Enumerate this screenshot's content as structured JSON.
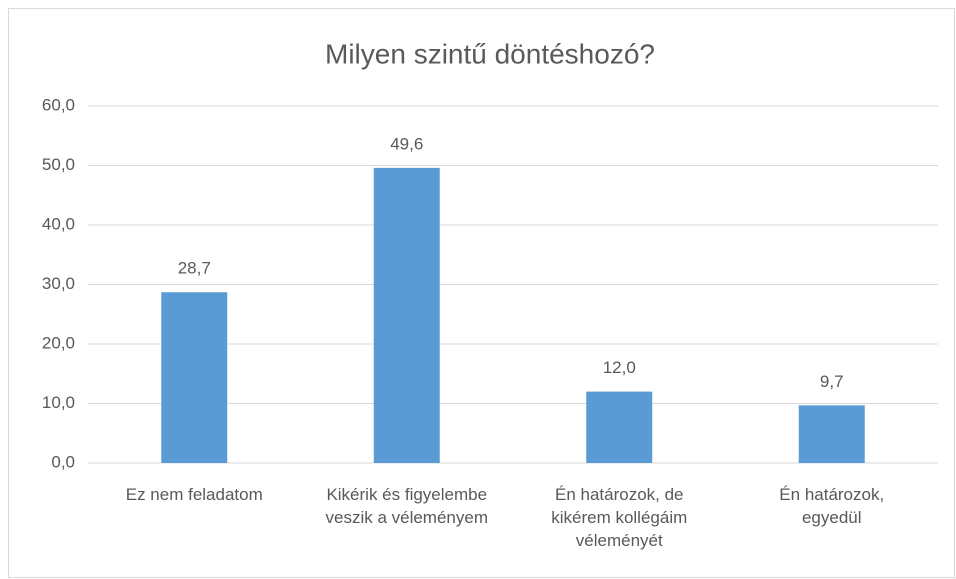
{
  "chart_data": {
    "type": "bar",
    "title": "Milyen szintű döntéshozó?",
    "categories": [
      "Ez nem feladatom",
      "Kikérik és figyelembe\nveszik a véleményem",
      "Én határozok, de\nkikérem kollégáim\nvéleményét",
      "Én határozok,\negyedül"
    ],
    "values": [
      28.7,
      49.6,
      12.0,
      9.7
    ],
    "value_labels": [
      "28,7",
      "49,6",
      "12,0",
      "9,7"
    ],
    "color": "#5b9bd5",
    "ylim": [
      0,
      60
    ],
    "yticks": [
      {
        "value": 0,
        "label": "0,0"
      },
      {
        "value": 10,
        "label": "10,0"
      },
      {
        "value": 20,
        "label": "20,0"
      },
      {
        "value": 30,
        "label": "30,0"
      },
      {
        "value": 40,
        "label": "40,0"
      },
      {
        "value": 50,
        "label": "50,0"
      },
      {
        "value": 60,
        "label": "60,0"
      }
    ],
    "grid": true
  }
}
